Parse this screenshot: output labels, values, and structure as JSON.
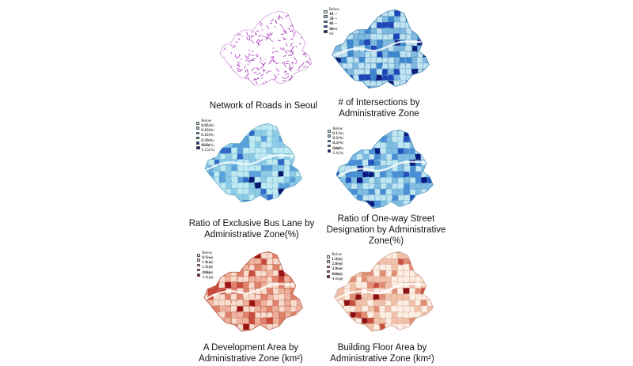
{
  "panels": [
    {
      "id": "roads",
      "caption_lines": [
        "Network of Roads in Seoul"
      ],
      "style": "network",
      "colors": {
        "line": "#9b1fb0",
        "river": "#ffffff"
      },
      "legend": []
    },
    {
      "id": "intersections",
      "caption_lines": [
        "# of Intersections by",
        "Administrative Zone"
      ],
      "style": "choropleth",
      "colors": {
        "base": "#8ec6df",
        "outline": "#3d7fb0"
      },
      "legend": [
        {
          "label": "Below 15",
          "color": "#bfe3f0"
        },
        {
          "label": "16 ~ 30",
          "color": "#7fb9e0"
        },
        {
          "label": "31 ~ 45",
          "color": "#3f86cf"
        },
        {
          "label": "46 ~ 60",
          "color": "#1f45b8"
        },
        {
          "label": "Over 60",
          "color": "#0c1a7c"
        }
      ]
    },
    {
      "id": "bus-lane",
      "caption_lines": [
        "Ratio of Exclusive Bus Lane by",
        "Administrative Zone(%)"
      ],
      "style": "choropleth",
      "colors": {
        "base": "#b7e7f0",
        "outline": "#5aa6c4"
      },
      "legend": [
        {
          "label": "Below 0.05(%)",
          "color": "#bfeaf2"
        },
        {
          "label": "0.05 ~ 0.10(%)",
          "color": "#8fcbe6"
        },
        {
          "label": "0.10 ~ 0.15(%)",
          "color": "#5b9fdc"
        },
        {
          "label": "0.15 ~ 0.20(%)",
          "color": "#3468c9"
        },
        {
          "label": "0.20 ~ 0.25(%)",
          "color": "#1c3aa6"
        },
        {
          "label": "Over 0.25(%)",
          "color": "#0b1670"
        }
      ]
    },
    {
      "id": "one-way",
      "caption_lines": [
        "Ratio of One-way Street",
        "Designation by Administrative",
        "Zone(%)"
      ],
      "style": "choropleth",
      "colors": {
        "base": "#a6dbec",
        "outline": "#4f93bd"
      },
      "legend": [
        {
          "label": "Below 0.1(%)",
          "color": "#bfe6f1"
        },
        {
          "label": "0.1 ~ 0.2(%)",
          "color": "#80bde2"
        },
        {
          "label": "0.2 ~ 0.3(%)",
          "color": "#4a8fd6"
        },
        {
          "label": "0.3 ~ 0.4(%)",
          "color": "#2553bd"
        },
        {
          "label": "Over 0.4(%)",
          "color": "#0b1a80"
        }
      ]
    },
    {
      "id": "development",
      "caption_lines": [
        "A Development Area by",
        "Administrative Zone (km²)"
      ],
      "style": "choropleth",
      "colors": {
        "base": "#e4917a",
        "outline": "#b55a46"
      },
      "legend": [
        {
          "label": "Below 0.5(㎢)",
          "color": "#f8dccd"
        },
        {
          "label": "0.5 ~ 1.0(㎢)",
          "color": "#eeb29e"
        },
        {
          "label": "1.0 ~ 1.5(㎢)",
          "color": "#e0826c"
        },
        {
          "label": "1.5 ~ 2.0(㎢)",
          "color": "#c94a3c"
        },
        {
          "label": "Over 2.0(㎢)",
          "color": "#9c1414"
        }
      ]
    },
    {
      "id": "floor-area",
      "caption_lines": [
        "Building Floor Area by",
        "Administrative Zone (km²)"
      ],
      "style": "choropleth",
      "colors": {
        "base": "#fbe4d6",
        "outline": "#c89a86"
      },
      "legend": [
        {
          "label": "Below 1.0(㎢)",
          "color": "#fdeee4"
        },
        {
          "label": "1.0 ~ 2.0(㎢)",
          "color": "#f2c1aa"
        },
        {
          "label": "2.0 ~ 3.0(㎢)",
          "color": "#e08e74"
        },
        {
          "label": "3.0 ~ 4.0(㎢)",
          "color": "#c9503e"
        },
        {
          "label": "Over 4.0(㎢)",
          "color": "#8f1212"
        }
      ]
    }
  ]
}
